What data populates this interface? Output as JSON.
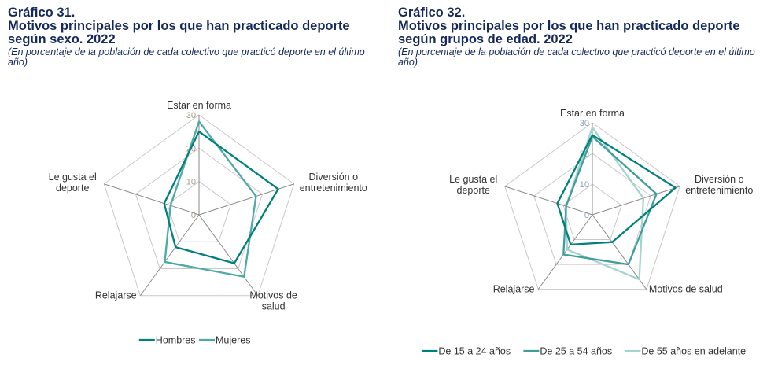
{
  "chart_data": [
    {
      "type": "radar",
      "number": "Gráfico 31.",
      "title": "Motivos principales por los que han practicado deporte según sexo. 2022",
      "subtitle": "(En porcentaje de la población de cada colectivo que practicó deporte en el último año)",
      "axes": [
        "Estar en forma",
        "Diversión o entretenimiento",
        "Motivos de salud",
        "Relajarse",
        "Le gusta el deporte"
      ],
      "axis_label_lines": [
        [
          "Estar en forma"
        ],
        [
          "Diversión o",
          "entretenimiento"
        ],
        [
          "Motivos de",
          "salud"
        ],
        [
          "Relajarse"
        ],
        [
          "Le gusta el",
          "deporte"
        ]
      ],
      "ticks": [
        0,
        10,
        20,
        30
      ],
      "range": [
        0,
        30
      ],
      "legend_position": "bottom",
      "series": [
        {
          "name": "Hombres",
          "color": "#00807a",
          "values": [
            25,
            25,
            18,
            12,
            11
          ]
        },
        {
          "name": "Mujeres",
          "color": "#4fa9a5",
          "values": [
            28,
            18,
            23,
            17.5,
            9
          ]
        }
      ]
    },
    {
      "type": "radar",
      "number": "Gráfico 32.",
      "title": "Motivos principales por los que han practicado deporte según grupos de edad. 2022",
      "subtitle": "(En porcentaje de la población de cada colectivo que practicó deporte en el último año)",
      "axes": [
        "Estar en forma",
        "Diversión o entretenimiento",
        "Motivos de salud",
        "Relajarse",
        "Le gusta el deporte"
      ],
      "axis_label_lines": [
        [
          "Estar en forma"
        ],
        [
          "Diversión o",
          "entretenimiento"
        ],
        [
          "Motivos de salud"
        ],
        [
          "Relajarse"
        ],
        [
          "Le gusta el",
          "deporte"
        ]
      ],
      "ticks": [
        0,
        10,
        20,
        30
      ],
      "range": [
        0,
        30
      ],
      "legend_position": "bottom",
      "series": [
        {
          "name": "De 15 a 24 años",
          "color": "#00807a",
          "values": [
            26,
            28.5,
            11,
            12,
            12
          ]
        },
        {
          "name": "De 25 a 54 años",
          "color": "#3f9e99",
          "values": [
            25.5,
            22,
            20,
            16,
            9
          ]
        },
        {
          "name": "De 55 años en adelante",
          "color": "#a3d4d1",
          "values": [
            28.5,
            17.5,
            26,
            14,
            9
          ]
        }
      ]
    }
  ]
}
